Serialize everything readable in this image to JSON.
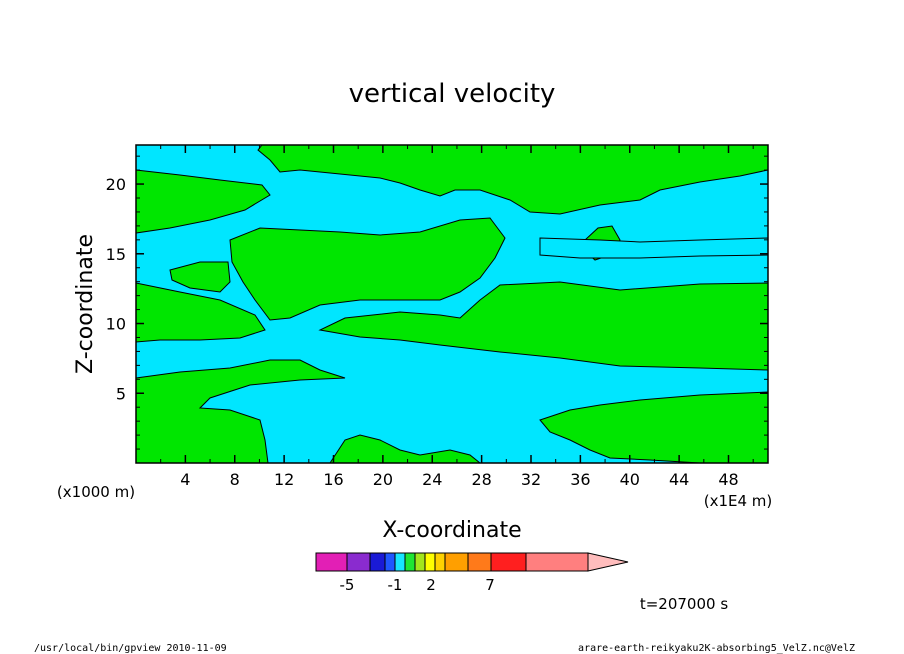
{
  "chart_data": {
    "type": "contour",
    "title": "vertical velocity",
    "xlabel": "X-coordinate",
    "ylabel": "Z-coordinate",
    "x_unit_note": "(x1000 m)",
    "x_scale_note": "(x1E4 m)",
    "x_ticks": [
      "4",
      "8",
      "12",
      "16",
      "20",
      "24",
      "28",
      "32",
      "36",
      "40",
      "44",
      "48"
    ],
    "y_ticks": [
      "5",
      "10",
      "15",
      "20"
    ],
    "xlim": [
      0,
      51.2
    ],
    "ylim": [
      0,
      22.8
    ],
    "colorbar": {
      "colors": [
        "#e21fb5",
        "#8a2bcf",
        "#1a1ad6",
        "#1f57ff",
        "#17e6ff",
        "#1ee633",
        "#a3e61c",
        "#ffff00",
        "#ffd200",
        "#ff9f00",
        "#ff7a1a",
        "#ff1f1f",
        "#ff7f7f",
        "#ffbdbd"
      ],
      "labels": [
        "-5",
        "-1",
        "2",
        "7"
      ]
    },
    "time_label": "t=207000 s",
    "regions_description_colors": {
      "positive": "#00e600",
      "negative": "#00e6ff"
    }
  },
  "footer": {
    "left": "/usr/local/bin/gpview  2010-11-09",
    "right": "arare-earth-reikyaku2K-absorbing5_VelZ.nc@VelZ"
  }
}
